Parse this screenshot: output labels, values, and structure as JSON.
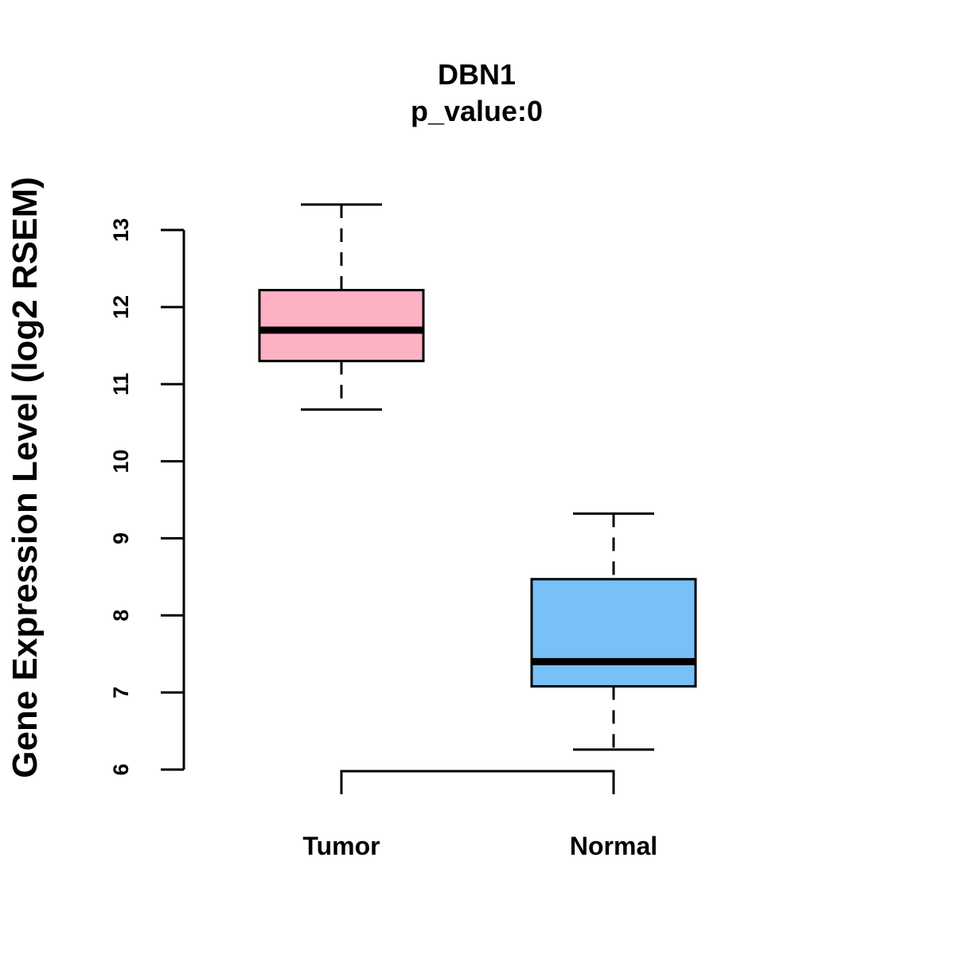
{
  "chart_data": {
    "type": "boxplot",
    "title": "DBN1",
    "subtitle": "p_value:0",
    "xlabel": "",
    "ylabel": "Gene Expression Level (log2 RSEM)",
    "ylim": [
      6,
      13
    ],
    "yticks": [
      6,
      7,
      8,
      9,
      10,
      11,
      12,
      13
    ],
    "categories": [
      "Tumor",
      "Normal"
    ],
    "series": [
      {
        "name": "Tumor",
        "whisker_low": 10.67,
        "q1": 11.3,
        "median": 11.7,
        "q3": 12.22,
        "whisker_high": 13.33,
        "color": "#ffb1c4"
      },
      {
        "name": "Normal",
        "whisker_low": 6.26,
        "q1": 7.08,
        "median": 7.4,
        "q3": 8.47,
        "whisker_high": 9.32,
        "color": "#78c0f8"
      }
    ],
    "comparison_bracket": [
      "Tumor",
      "Normal"
    ]
  }
}
